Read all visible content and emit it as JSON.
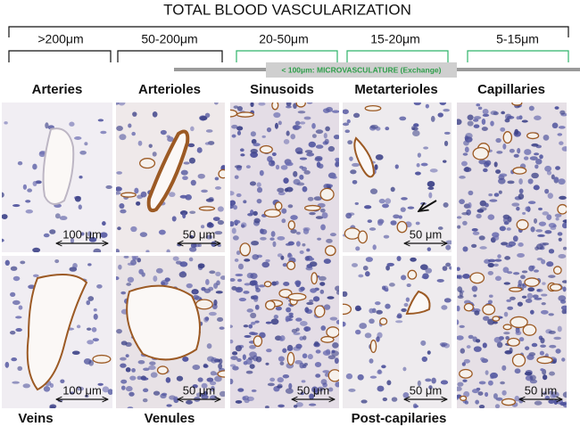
{
  "header": {
    "title": "TOTAL BLOOD VASCULARIZATION"
  },
  "size_ranges": [
    ">200μm",
    "50-200μm",
    "20-50μm",
    "15-20μm",
    "5-15μm"
  ],
  "microvasculature_label": "< 100μm: MICROVASCULATURE (Exchange)",
  "column_headers": [
    "Arteries",
    "Arterioles",
    "Sinusoids",
    "Metarterioles",
    "Capillaries"
  ],
  "bottom_labels": [
    "Veins",
    "Venules",
    "Post-capilaries"
  ],
  "panels": [
    {
      "scale_bar": "100 μm"
    },
    {
      "scale_bar": "50 μm"
    },
    {
      "scale_bar": "50 μm"
    },
    {
      "scale_bar": "50 μm"
    },
    {
      "scale_bar": "50 μm"
    },
    {
      "scale_bar": "100 μm"
    },
    {
      "scale_bar": "50 μm"
    },
    {
      "scale_bar": "50 μm"
    }
  ]
}
